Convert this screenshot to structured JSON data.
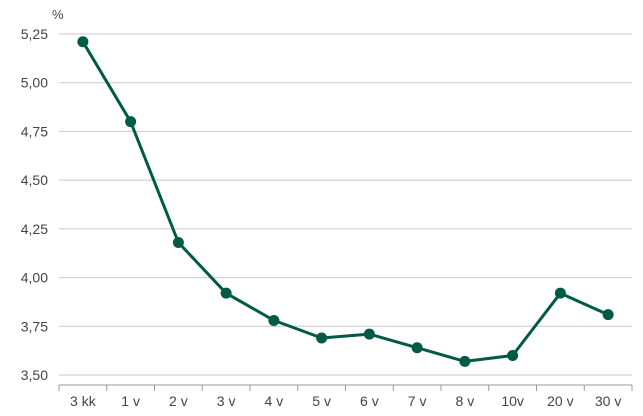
{
  "chart_data": {
    "type": "line",
    "title": "",
    "xlabel": "",
    "ylabel": "%",
    "categories": [
      "3 kk",
      "1 v",
      "2 v",
      "3 v",
      "4 v",
      "5 v",
      "6 v",
      "7 v",
      "8 v",
      "10v",
      "20 v",
      "30 v"
    ],
    "series": [
      {
        "values": [
          5.21,
          4.8,
          4.18,
          3.92,
          3.78,
          3.69,
          3.71,
          3.64,
          3.57,
          3.6,
          3.92,
          3.81
        ]
      }
    ],
    "y_ticks": [
      "3,50",
      "3,75",
      "4,00",
      "4,25",
      "4,50",
      "4,75",
      "5,00",
      "5,25"
    ],
    "ylim": [
      3.5,
      5.25
    ],
    "grid": "horizontal",
    "colors": {
      "line": "#005a46",
      "grid": "#c8c8c8",
      "axis": "#999999"
    }
  }
}
